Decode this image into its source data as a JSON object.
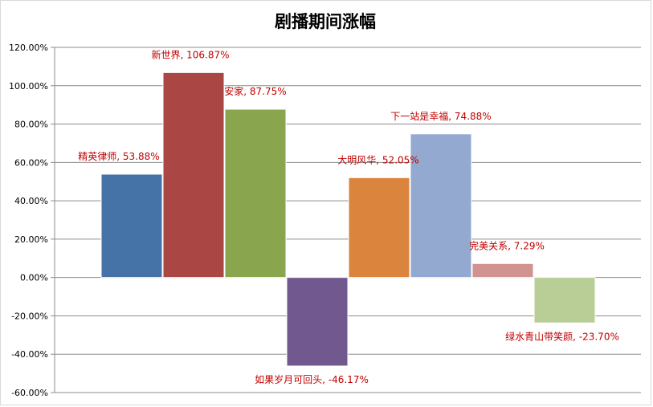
{
  "chart_data": {
    "type": "bar",
    "title": "剧播期间涨幅",
    "categories": [
      "精英律师",
      "新世界",
      "安家",
      "如果岁月可回头",
      "大明风华",
      "下一站是幸福",
      "完美关系",
      "绿水青山带笑颜"
    ],
    "values": [
      53.88,
      106.87,
      87.75,
      -46.17,
      52.05,
      74.88,
      7.29,
      -23.7
    ],
    "data_labels": [
      "精英律师, 53.88%",
      "新世界, 106.87%",
      "安家, 87.75%",
      "如果岁月可回头, -46.17%",
      "大明风华, 52.05%",
      "下一站是幸福, 74.88%",
      "完美关系, 7.29%",
      "绿水青山带笑颜, -23.70%"
    ],
    "bar_colors": [
      "#4572a7",
      "#aa4643",
      "#89a54e",
      "#71588f",
      "#db843d",
      "#93a9cf",
      "#d19392",
      "#b9cd96"
    ],
    "ylim": [
      -60,
      120
    ],
    "y_ticks": [
      "120.00%",
      "100.00%",
      "80.00%",
      "60.00%",
      "40.00%",
      "20.00%",
      "0.00%",
      "-20.00%",
      "-40.00%",
      "-60.00%"
    ],
    "grid": true,
    "legend": "none",
    "xlabel": "",
    "ylabel": "",
    "colors": {
      "label": "#c00000",
      "grid": "#8c8c8c"
    }
  }
}
